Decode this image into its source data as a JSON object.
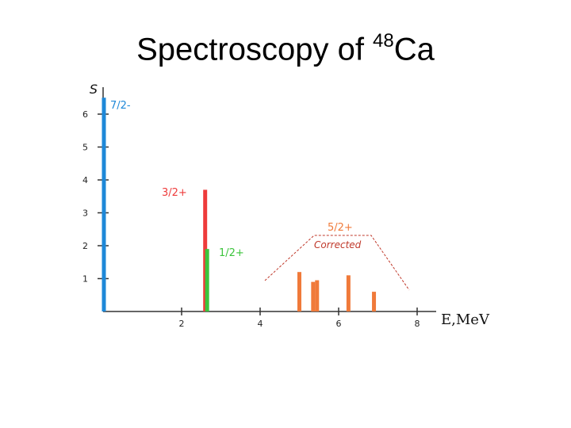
{
  "title": {
    "prefix": "Spectroscopy of ",
    "mass_number": "48",
    "element": "Ca"
  },
  "chart_data": {
    "type": "bar",
    "ylabel": "S",
    "xlabel": "E,MeV",
    "xlim": [
      0,
      8.4
    ],
    "ylim": [
      0,
      7
    ],
    "xticks": [
      2,
      4,
      6,
      8
    ],
    "yticks": [
      1,
      2,
      3,
      4,
      5,
      6
    ],
    "grid": false,
    "series": [
      {
        "name": "7/2-",
        "color": "#1e88d8",
        "bars": [
          {
            "x": 0.0,
            "value": 6.5
          }
        ]
      },
      {
        "name": "3/2+",
        "color": "#ee3b3b",
        "bars": [
          {
            "x": 2.6,
            "value": 3.7
          }
        ]
      },
      {
        "name": "1/2+",
        "color": "#3cc43c",
        "bars": [
          {
            "x": 2.65,
            "value": 1.9
          }
        ]
      },
      {
        "name": "5/2+",
        "color": "#f07a3a",
        "bars": [
          {
            "x": 5.0,
            "value": 1.2
          },
          {
            "x": 5.35,
            "value": 0.9
          },
          {
            "x": 5.45,
            "value": 0.95
          },
          {
            "x": 6.25,
            "value": 1.1
          },
          {
            "x": 6.9,
            "value": 0.6
          }
        ]
      }
    ],
    "annotations": {
      "corrected_label": "Corrected",
      "bracket_color": "#c0392b"
    }
  }
}
